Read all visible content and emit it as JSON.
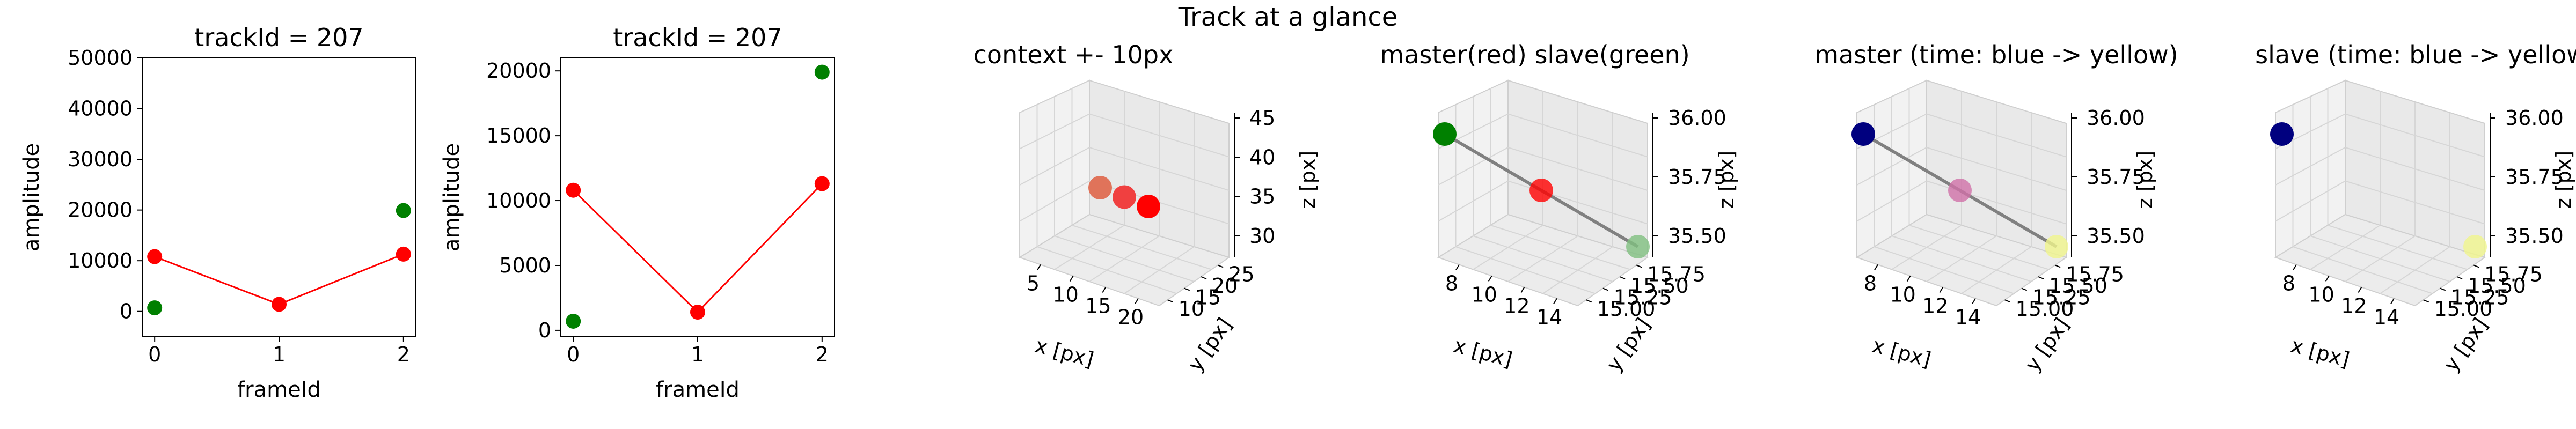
{
  "figure": {
    "title": "Track at a glance"
  },
  "colors": {
    "master": "#ff0000",
    "slave": "#008000",
    "link": "#808080",
    "dark_blue": "#00007f",
    "pale_yellow": "#f0f58c"
  },
  "chart_data": [
    {
      "type": "line",
      "title": "trackId = 207",
      "xlabel": "frameId",
      "ylabel": "amplitude",
      "xlim": [
        -0.1,
        2.1
      ],
      "ylim": [
        -5000,
        50000
      ],
      "x_ticks": [
        "0",
        "1",
        "2"
      ],
      "y_ticks": [
        "0",
        "10000",
        "20000",
        "30000",
        "40000",
        "50000"
      ],
      "series": [
        {
          "x": [
            0,
            1,
            2
          ],
          "values": [
            10800,
            1400,
            11300
          ],
          "line": true,
          "color": "#ff0000"
        },
        {
          "x": [
            0,
            2
          ],
          "values": [
            700,
            19900
          ],
          "line": false,
          "color": "#008000"
        }
      ]
    },
    {
      "type": "line",
      "title": "trackId = 207",
      "xlabel": "frameId",
      "ylabel": "amplitude",
      "xlim": [
        -0.1,
        2.1
      ],
      "ylim": [
        -500,
        21000
      ],
      "x_ticks": [
        "0",
        "1",
        "2"
      ],
      "y_ticks": [
        "0",
        "5000",
        "10000",
        "15000",
        "20000"
      ],
      "series": [
        {
          "x": [
            0,
            1,
            2
          ],
          "values": [
            10800,
            1400,
            11300
          ],
          "line": true,
          "color": "#ff0000"
        },
        {
          "x": [
            0,
            2
          ],
          "values": [
            700,
            19900
          ],
          "line": false,
          "color": "#008000"
        }
      ]
    },
    {
      "type": "scatter3d",
      "title": "context +- 10px",
      "xlabel": "x [px]",
      "ylabel": "y [px]",
      "zlabel": "z [px]",
      "x_ticks": [
        "5",
        "10",
        "15",
        "20"
      ],
      "y_ticks": [
        "10",
        "15",
        "20",
        "25"
      ],
      "z_ticks": [
        "30",
        "35",
        "40",
        "45"
      ],
      "points": [
        {
          "x": 11,
          "y": 15,
          "z": 36,
          "color": "#e0735a"
        },
        {
          "x": 13,
          "y": 15,
          "z": 35,
          "color": "#f04040"
        },
        {
          "x": 15,
          "y": 15,
          "z": 34,
          "color": "#ff0000"
        }
      ]
    },
    {
      "type": "scatter3d",
      "title": "master(red) slave(green)",
      "xlabel": "x [px]",
      "ylabel": "y [px]",
      "zlabel": "z [px]",
      "x_ticks": [
        "8",
        "10",
        "12",
        "14"
      ],
      "y_ticks": [
        "15.00",
        "15.25",
        "15.50",
        "15.75"
      ],
      "z_ticks": [
        "35.50",
        "35.75",
        "36.00"
      ],
      "points": [
        {
          "x": 8,
          "y": 15,
          "z": 36,
          "color": "#008000"
        },
        {
          "x": 11,
          "y": 15.4,
          "z": 35.7,
          "color": "#ff0000"
        },
        {
          "x": 14,
          "y": 15.8,
          "z": 35.4,
          "color": "#7fbf7f"
        }
      ]
    },
    {
      "type": "scatter3d",
      "title": "master (time: blue -> yellow)",
      "xlabel": "x [px]",
      "ylabel": "y [px]",
      "zlabel": "z [px]",
      "x_ticks": [
        "8",
        "10",
        "12",
        "14"
      ],
      "y_ticks": [
        "15.00",
        "15.25",
        "15.50",
        "15.75"
      ],
      "z_ticks": [
        "35.50",
        "35.75",
        "36.00"
      ],
      "points": [
        {
          "x": 8,
          "y": 15,
          "z": 36,
          "color": "#00007f"
        },
        {
          "x": 11,
          "y": 15.4,
          "z": 35.7,
          "color": "#d070a8"
        },
        {
          "x": 14,
          "y": 15.8,
          "z": 35.4,
          "color": "#f0f58c"
        }
      ]
    },
    {
      "type": "scatter3d",
      "title": "slave (time: blue -> yellow)",
      "xlabel": "x [px]",
      "ylabel": "y [px]",
      "zlabel": "z [px]",
      "x_ticks": [
        "8",
        "10",
        "12",
        "14"
      ],
      "y_ticks": [
        "15.00",
        "15.25",
        "15.50",
        "15.75"
      ],
      "z_ticks": [
        "35.50",
        "35.75",
        "36.00"
      ],
      "points": [
        {
          "x": 8,
          "y": 15,
          "z": 36,
          "color": "#00007f"
        },
        {
          "x": 14,
          "y": 15.8,
          "z": 35.4,
          "color": "#f0f58c"
        }
      ]
    }
  ]
}
